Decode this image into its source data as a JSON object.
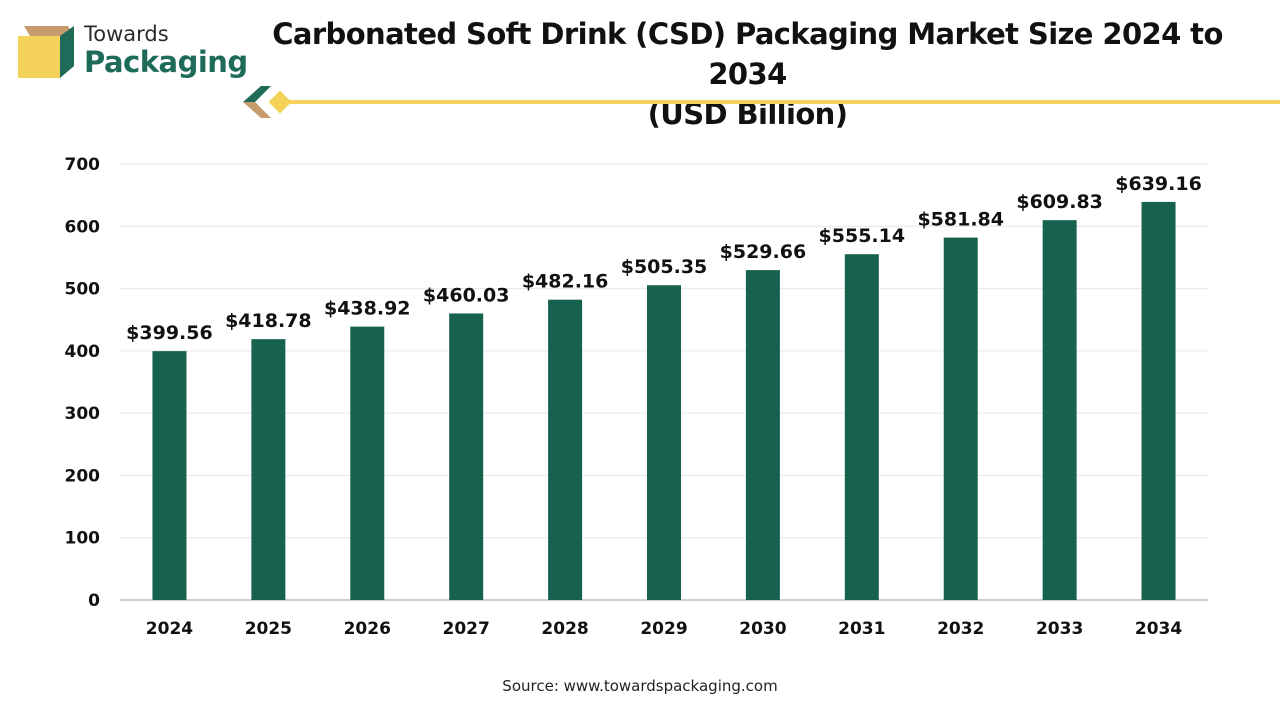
{
  "brand": {
    "line1": "Towards",
    "line2": "Packaging"
  },
  "colors": {
    "bar": "#17614f",
    "brand_green": "#1d6b58",
    "accent_yellow": "#f5d35b",
    "accent_brown": "#c69c6d",
    "grid": "#e6e6e6",
    "axis": "#bfbfbf"
  },
  "source_text": "Source: www.towardspackaging.com",
  "chart_data": {
    "type": "bar",
    "title": "Carbonated Soft Drink (CSD) Packaging Market Size 2024 to 2034 (USD Billion)",
    "title_lines": [
      "Carbonated Soft Drink (CSD) Packaging Market Size 2024 to 2034",
      "(USD Billion)"
    ],
    "xlabel": "",
    "ylabel": "",
    "categories": [
      "2024",
      "2025",
      "2026",
      "2027",
      "2028",
      "2029",
      "2030",
      "2031",
      "2032",
      "2033",
      "2034"
    ],
    "values": [
      399.56,
      418.78,
      438.92,
      460.03,
      482.16,
      505.35,
      529.66,
      555.14,
      581.84,
      609.83,
      639.16
    ],
    "data_labels": [
      "$399.56",
      "$418.78",
      "$438.92",
      "$460.03",
      "$482.16",
      "$505.35",
      "$529.66",
      "$555.14",
      "$581.84",
      "$609.83",
      "$639.16"
    ],
    "ylim": [
      0,
      700
    ],
    "yticks": [
      0,
      100,
      200,
      300,
      400,
      500,
      600,
      700
    ],
    "grid": true,
    "legend": "none"
  }
}
